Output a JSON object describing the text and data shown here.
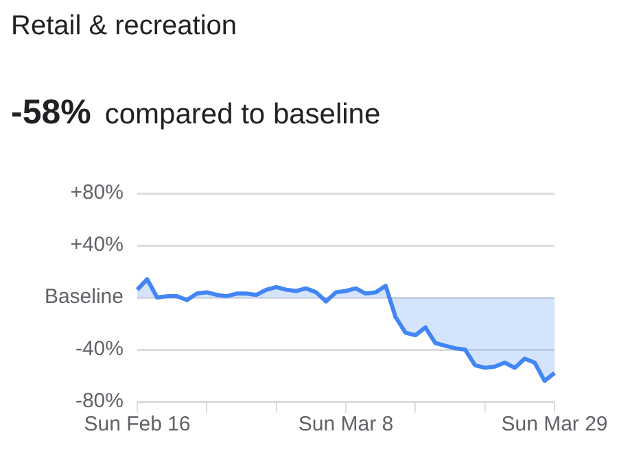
{
  "chart_data": {
    "type": "area",
    "title": "Retail & recreation",
    "subtitle": "-58% compared to baseline",
    "categories": [
      "Sun Feb 16",
      null,
      null,
      null,
      null,
      null,
      null,
      null,
      null,
      null,
      null,
      null,
      null,
      null,
      null,
      null,
      null,
      null,
      null,
      null,
      null,
      "Sun Mar 8",
      null,
      null,
      null,
      null,
      null,
      null,
      null,
      null,
      null,
      null,
      null,
      null,
      null,
      null,
      null,
      null,
      null,
      null,
      null,
      null,
      "Sun Mar 29"
    ],
    "series": [
      {
        "color": "#4285f4",
        "values": [
          6,
          14,
          0,
          1,
          1,
          -2,
          3,
          4,
          2,
          1,
          3,
          3,
          2,
          6,
          8,
          6,
          5,
          7,
          4,
          -3,
          4,
          5,
          7,
          3,
          4,
          9,
          -15,
          -27,
          -29,
          -23,
          -35,
          -37,
          -39,
          -40,
          -52,
          -54,
          -53,
          -50,
          -54,
          -47,
          -50,
          -64,
          -58
        ]
      }
    ],
    "ylim": [
      -80,
      80
    ],
    "yticks": [
      {
        "value": 80,
        "label": "+80%"
      },
      {
        "value": 40,
        "label": "+40%"
      },
      {
        "value": 0,
        "label": "Baseline"
      },
      {
        "value": -40,
        "label": "-40%"
      },
      {
        "value": -80,
        "label": "-80%"
      }
    ],
    "grid": "y",
    "legend": false
  }
}
